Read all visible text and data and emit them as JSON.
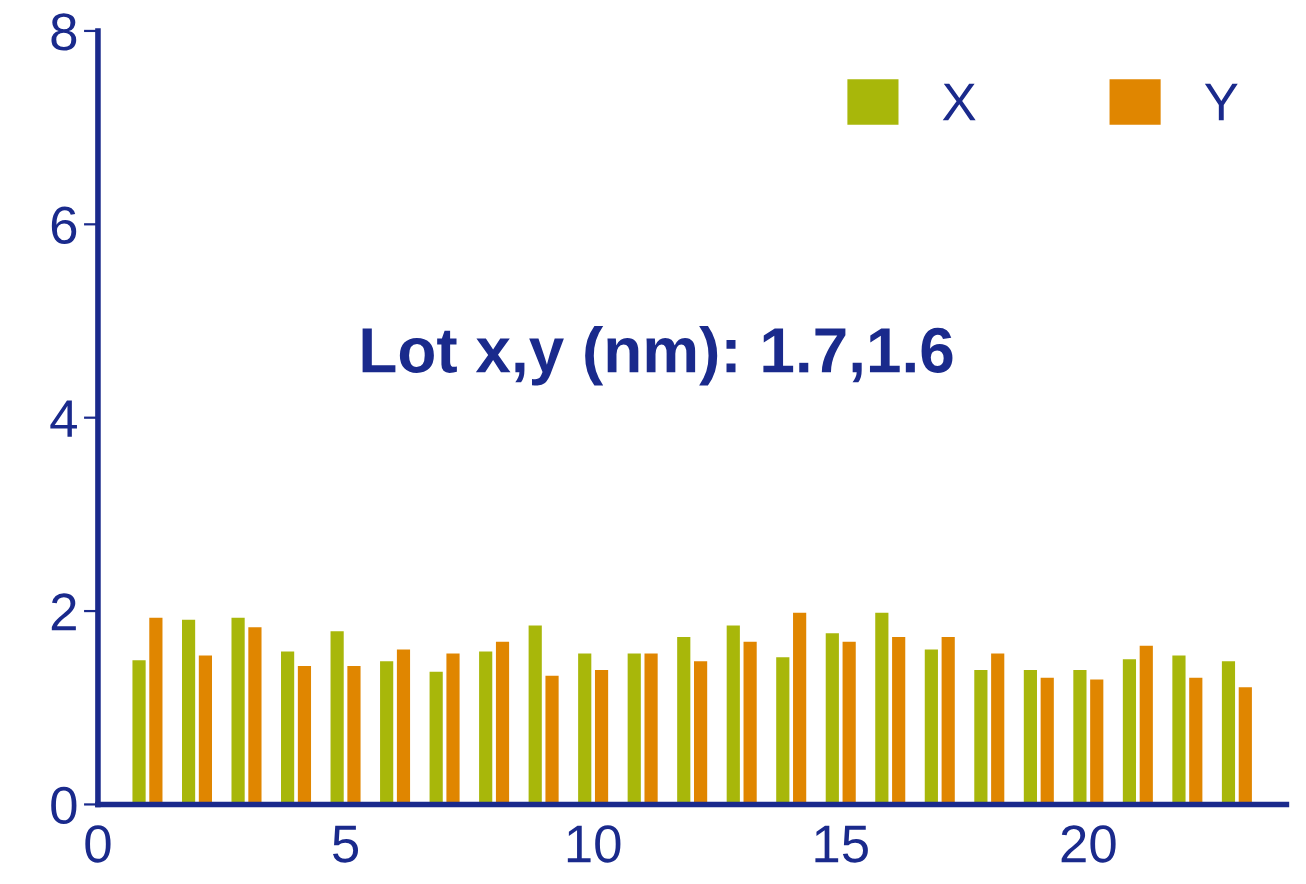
{
  "chart_data": {
    "type": "bar",
    "x": [
      1,
      2,
      3,
      4,
      5,
      6,
      7,
      8,
      9,
      10,
      11,
      12,
      13,
      14,
      15,
      16,
      17,
      18,
      19,
      20,
      21,
      22,
      23
    ],
    "series": [
      {
        "name": "X",
        "color": "#a8b70a",
        "values": [
          1.5,
          1.92,
          1.94,
          1.59,
          1.8,
          1.49,
          1.38,
          1.59,
          1.86,
          1.57,
          1.57,
          1.74,
          1.86,
          1.53,
          1.78,
          1.99,
          1.61,
          1.4,
          1.4,
          1.4,
          1.51,
          1.55,
          1.49
        ]
      },
      {
        "name": "Y",
        "color": "#e08600",
        "values": [
          1.94,
          1.55,
          1.84,
          1.44,
          1.44,
          1.61,
          1.57,
          1.69,
          1.34,
          1.4,
          1.57,
          1.49,
          1.69,
          1.99,
          1.69,
          1.74,
          1.74,
          1.57,
          1.32,
          1.3,
          1.65,
          1.32,
          1.22
        ]
      }
    ],
    "annotations": [
      "Lot x,y (nm): 1.7,1.6"
    ],
    "xlim": [
      0,
      24
    ],
    "xticks": [
      0,
      5,
      10,
      15,
      20
    ],
    "ylim": [
      0,
      8
    ],
    "yticks": [
      0,
      2,
      4,
      6,
      8
    ],
    "grid": false,
    "legend": "top right"
  }
}
